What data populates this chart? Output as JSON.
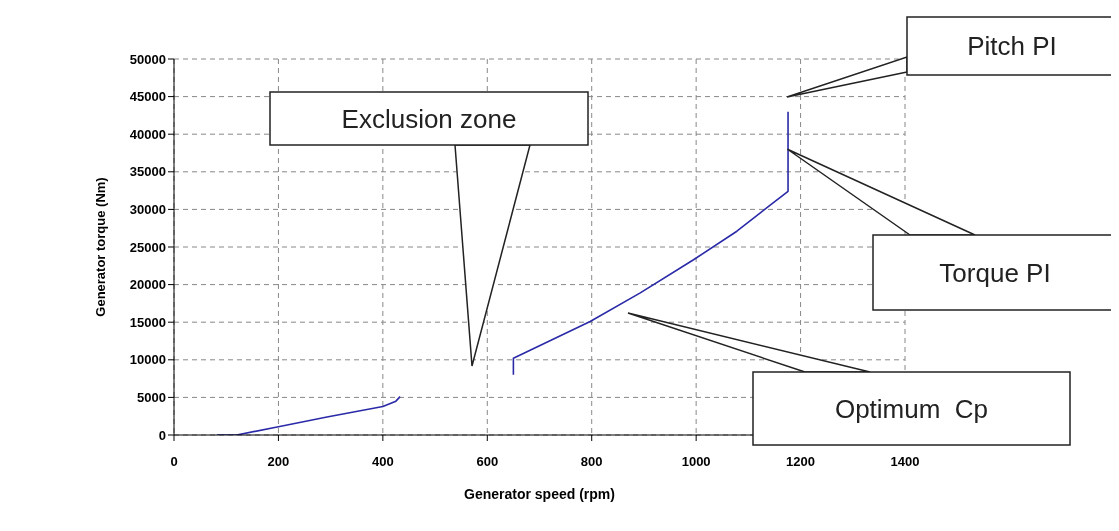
{
  "chart_data": {
    "type": "line",
    "xlabel": "Generator speed (rpm)",
    "ylabel": "Generator torque (Nm)",
    "xlim": [
      0,
      1400
    ],
    "xticks": [
      0,
      200,
      400,
      600,
      800,
      1000,
      1200,
      1400
    ],
    "ylim": [
      0,
      50000
    ],
    "yticks": [
      0,
      5000,
      10000,
      15000,
      20000,
      25000,
      30000,
      35000,
      40000,
      45000,
      50000
    ],
    "grid": true,
    "line_style": "solid",
    "marker": "none",
    "series": [
      {
        "color": "#2a2aa8",
        "x": [
          82,
          120,
          200,
          293,
          400,
          425,
          433
        ],
        "values": [
          0,
          0,
          1100,
          2400,
          3800,
          4500,
          5100
        ]
      },
      {
        "color": "#2a2aa8",
        "x": [
          650,
          650,
          797,
          893,
          995,
          1078,
          1148,
          1176,
          1176
        ],
        "values": [
          8000,
          10200,
          15100,
          18900,
          23300,
          27100,
          30900,
          32400,
          43000
        ]
      }
    ],
    "annotations": [
      "Exclusion zone",
      "Pitch PI",
      {
        "text": "Torque PI",
        "x": 1175,
        "y": 38000
      },
      "Optimum  Cp"
    ]
  }
}
